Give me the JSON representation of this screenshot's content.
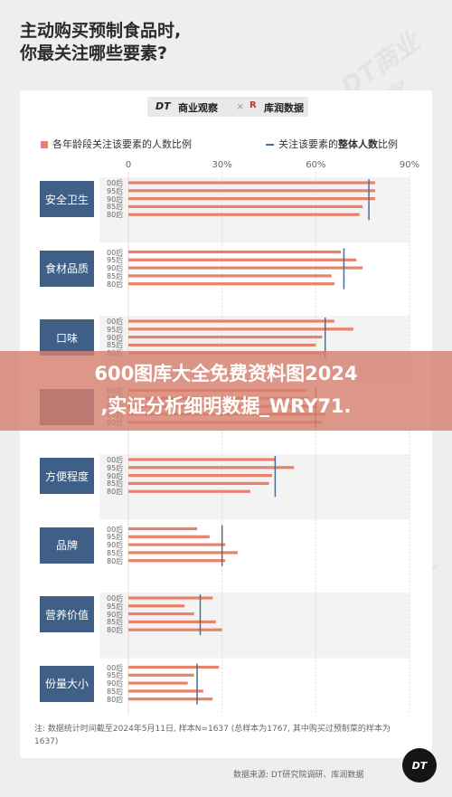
{
  "title_lines": [
    "主动购买预制食品时,",
    "你最关注哪些要素?"
  ],
  "brands": {
    "dt": "DT",
    "dt_name": "商业观察",
    "sep": "×",
    "ku_name": "库润数据"
  },
  "legend": {
    "bars": "各年龄段关注该要素的人数比例",
    "overall_prefix": "关注该要素的",
    "overall_bold": "整体人数",
    "overall_suffix": "比例"
  },
  "overlay_text": [
    "600图库大全免费资料图2024",
    ",实证分析细明数据_WRY71."
  ],
  "note": "注: 数据统计时间截至2024年5月11日, 样本N=1637 (总样本为1767, 其中购买过预制菜的样本为1637)",
  "source": "数据来源: DT研究院调研、库润数据",
  "badge": "DT",
  "watermark": "DT商业观察",
  "colors": {
    "bar": "#e8826a",
    "overall": "#4f6d8f",
    "category": "#3f5f86",
    "band": "#f3f3f3"
  },
  "chart_data": {
    "type": "bar",
    "orientation": "horizontal",
    "x_ticks": [
      "0",
      "30%",
      "60%",
      "90%"
    ],
    "xlim": [
      0,
      90
    ],
    "age_groups": [
      "00后",
      "95后",
      "90后",
      "85后",
      "80后"
    ],
    "categories": [
      {
        "name": "安全卫生",
        "values": [
          79,
          79,
          79,
          75,
          74
        ],
        "overall": 77
      },
      {
        "name": "食材品质",
        "values": [
          68,
          73,
          75,
          65,
          66
        ],
        "overall": 69
      },
      {
        "name": "口味",
        "values": [
          66,
          72,
          62,
          60,
          63
        ],
        "overall": 63
      },
      {
        "name": "",
        "values": [
          57,
          58,
          60,
          63,
          62
        ],
        "overall": 60
      },
      {
        "name": "方便程度",
        "values": [
          47,
          53,
          46,
          45,
          39
        ],
        "overall": 47
      },
      {
        "name": "品牌",
        "values": [
          22,
          26,
          31,
          35,
          31
        ],
        "overall": 30
      },
      {
        "name": "营养价值",
        "values": [
          27,
          18,
          21,
          28,
          30
        ],
        "overall": 23
      },
      {
        "name": "份量大小",
        "values": [
          29,
          21,
          19,
          24,
          27
        ],
        "overall": 22
      }
    ]
  }
}
